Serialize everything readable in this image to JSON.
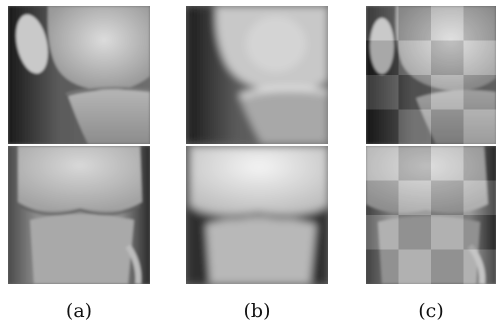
{
  "captions": [
    "(a)",
    "(b)",
    "(c)"
  ],
  "panels": [
    {
      "column": "a",
      "row": "top",
      "view": "lateral-knee-xray",
      "style": "sharp"
    },
    {
      "column": "b",
      "row": "top",
      "view": "lateral-knee-xray",
      "style": "blurred"
    },
    {
      "column": "c",
      "row": "top",
      "view": "lateral-knee-xray",
      "style": "checkerboard-composite"
    },
    {
      "column": "a",
      "row": "bottom",
      "view": "frontal-knee-xray",
      "style": "sharp"
    },
    {
      "column": "b",
      "row": "bottom",
      "view": "frontal-knee-xray",
      "style": "blurred"
    },
    {
      "column": "c",
      "row": "bottom",
      "view": "frontal-knee-xray",
      "style": "checkerboard-composite"
    }
  ]
}
